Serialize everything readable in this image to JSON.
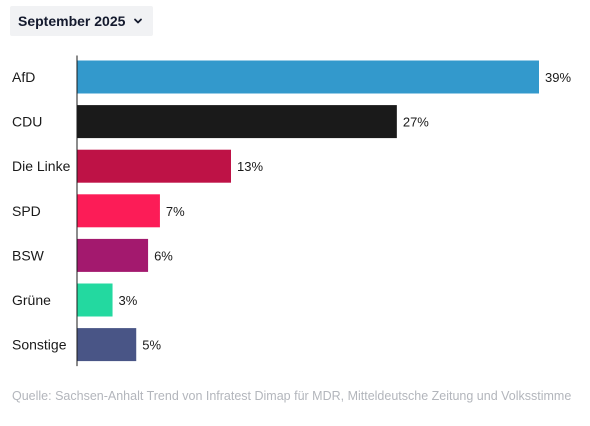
{
  "period_selector": {
    "selected": "September 2025",
    "icon": "chevron-down-icon"
  },
  "chart_data": {
    "type": "bar",
    "orientation": "horizontal",
    "categories": [
      "AfD",
      "CDU",
      "Die Linke",
      "SPD",
      "BSW",
      "Grüne",
      "Sonstige"
    ],
    "values": [
      39,
      27,
      13,
      7,
      6,
      3,
      5
    ],
    "value_labels": [
      "39%",
      "27%",
      "13%",
      "7%",
      "6%",
      "3%",
      "5%"
    ],
    "colors": [
      "#3399cc",
      "#1a1a1a",
      "#be1246",
      "#fc1c57",
      "#a3196e",
      "#23d9a0",
      "#495586"
    ],
    "unit": "%",
    "xlim": [
      0,
      39
    ],
    "grid": false,
    "legend": "none"
  },
  "source_note": "Quelle: Sachsen-Anhalt Trend von Infratest Dimap für MDR, Mitteldeutsche Zeitung und Volksstimme"
}
